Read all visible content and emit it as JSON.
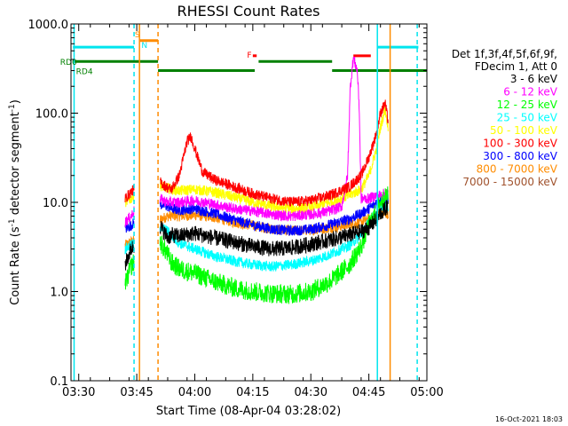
{
  "chart_data": {
    "type": "line",
    "title": "RHESSI Count Rates",
    "xlabel": "Start Time (08-Apr-04 03:28:02)",
    "ylabel": "Count Rate (s⁻¹ detector segment⁻¹)",
    "ylabel_main": "Count Rate (s",
    "ylabel_mid": " detector segment",
    "ylabel_end": ")",
    "ylabel_sup": "-1",
    "yscale": "log",
    "ylim": [
      0.1,
      1000
    ],
    "xlim_min": [
      208,
      300
    ],
    "x_ticks": [
      {
        "t": 210,
        "label": "03:30"
      },
      {
        "t": 225,
        "label": "03:45"
      },
      {
        "t": 240,
        "label": "04:00"
      },
      {
        "t": 255,
        "label": "04:15"
      },
      {
        "t": 270,
        "label": "04:30"
      },
      {
        "t": 285,
        "label": "04:45"
      },
      {
        "t": 300,
        "label": "05:00"
      }
    ],
    "y_ticks": [
      {
        "v": 0.1,
        "label": "0.1"
      },
      {
        "v": 1,
        "label": "1.0"
      },
      {
        "v": 10,
        "label": "10.0"
      },
      {
        "v": 100,
        "label": "100.0"
      },
      {
        "v": 1000,
        "label": "1000.0"
      }
    ],
    "legend_header": [
      "Det 1f,3f,4f,5f,6f,9f,",
      "FDecim 1, Att 0"
    ],
    "legend_placement": "right",
    "series": [
      {
        "name": "3 - 6 keV",
        "color": "#000000",
        "x": [
          222,
          223.5,
          225,
          226,
          230,
          231,
          233,
          234,
          236,
          240,
          245,
          250,
          255,
          260,
          265,
          270,
          275,
          280,
          283,
          285,
          287,
          288,
          290
        ],
        "y": [
          2,
          3,
          3.5,
          4,
          6,
          5.5,
          4,
          4.3,
          4.2,
          4.5,
          4,
          3.6,
          3.2,
          3,
          3.1,
          3.4,
          3.8,
          4.3,
          4.7,
          5.2,
          6.5,
          7.5,
          9
        ]
      },
      {
        "name": "6 - 12 keV",
        "color": "#ff00ff",
        "x": [
          222,
          223.5,
          225,
          226,
          230,
          231,
          233,
          234,
          236,
          240,
          245,
          250,
          255,
          260,
          265,
          270,
          275,
          278,
          279.5,
          280.2,
          281,
          282,
          282.5,
          283,
          285,
          287,
          288,
          290
        ],
        "y": [
          6,
          7,
          9,
          10,
          12,
          11,
          10,
          10,
          10,
          10.5,
          9.5,
          8.5,
          8,
          7.3,
          7,
          7.3,
          8,
          9,
          20,
          200,
          420,
          300,
          120,
          11,
          11,
          12,
          12,
          13
        ]
      },
      {
        "name": "12 - 25 keV",
        "color": "#00ff00",
        "x": [
          222,
          223.5,
          225,
          226,
          230,
          231,
          233,
          234,
          236,
          240,
          245,
          250,
          255,
          260,
          265,
          270,
          275,
          280,
          283,
          285,
          287,
          288,
          290
        ],
        "y": [
          1.2,
          1.9,
          2.4,
          2.6,
          4,
          3.6,
          2.6,
          2.1,
          1.8,
          1.6,
          1.3,
          1.1,
          1.0,
          0.95,
          0.93,
          1.0,
          1.3,
          2,
          3.2,
          5.5,
          8,
          10,
          12
        ]
      },
      {
        "name": "25 - 50 keV",
        "color": "#00ffff",
        "x": [
          222,
          223.5,
          225,
          226,
          230,
          231,
          233,
          234,
          236,
          240,
          245,
          250,
          255,
          260,
          265,
          270,
          275,
          280,
          283,
          285,
          287,
          288,
          290
        ],
        "y": [
          3,
          3.3,
          3.8,
          4.3,
          5,
          5.2,
          4.8,
          4.2,
          3.5,
          3,
          2.5,
          2.2,
          2,
          1.9,
          2,
          2.2,
          2.6,
          3.3,
          4.3,
          6,
          8,
          9,
          9
        ]
      },
      {
        "name": "50 - 100 keV",
        "color": "#ffff00",
        "x": [
          222,
          223.5,
          225,
          226,
          230,
          231,
          233,
          234,
          236,
          240,
          245,
          250,
          255,
          260,
          265,
          270,
          275,
          280,
          283,
          285,
          287,
          288,
          289.2,
          290
        ],
        "y": [
          10,
          11,
          13,
          14,
          16,
          15.5,
          14.5,
          14,
          13.5,
          14,
          13,
          11.5,
          10,
          9,
          8.5,
          8.8,
          10,
          12,
          14,
          20,
          40,
          70,
          110,
          70
        ]
      },
      {
        "name": "100 - 300 keV",
        "color": "#ff0000",
        "x": [
          222,
          223.5,
          225,
          226,
          230,
          231,
          233,
          234,
          236,
          238,
          239,
          240,
          242,
          245,
          250,
          255,
          260,
          265,
          270,
          275,
          280,
          283,
          285,
          287,
          288,
          289.2,
          290
        ],
        "y": [
          11,
          13,
          15,
          17,
          18,
          17,
          14.5,
          14,
          20,
          48,
          55,
          40,
          22,
          18,
          15,
          12.5,
          11,
          10,
          10.5,
          12,
          15,
          20,
          32,
          60,
          100,
          130,
          80
        ]
      },
      {
        "name": "300 - 800 keV",
        "color": "#0000ff",
        "x": [
          222,
          223.5,
          225,
          226,
          230,
          231,
          233,
          234,
          236,
          240,
          245,
          250,
          255,
          260,
          265,
          270,
          275,
          280,
          283,
          285,
          287,
          288,
          290
        ],
        "y": [
          5,
          5.5,
          6.3,
          7,
          9,
          9.5,
          9,
          8.5,
          8.2,
          8.5,
          7.5,
          6.4,
          5.6,
          5,
          4.8,
          5,
          5.6,
          6.5,
          7.5,
          8.5,
          10,
          10.5,
          11
        ]
      },
      {
        "name": "800 - 7000 keV",
        "color": "#ff8c00",
        "x": [
          222,
          223.5,
          225,
          226,
          230,
          231,
          233,
          234,
          236,
          240,
          245,
          250,
          255,
          260,
          265,
          270,
          275,
          280,
          283,
          285,
          287,
          288,
          290
        ],
        "y": [
          3.3,
          3.6,
          3.8,
          4,
          6,
          6.4,
          7,
          7.1,
          7,
          7.2,
          6.8,
          6,
          5.5,
          5,
          4.8,
          4.9,
          5.2,
          5.6,
          6,
          6.5,
          7,
          7.3,
          7.5
        ]
      },
      {
        "name": "7000 - 15000 keV",
        "color": "#a0522d",
        "x": [],
        "y": []
      }
    ],
    "vlines": [
      {
        "t": 208.8,
        "color": "#00e5ee",
        "style": "solid"
      },
      {
        "t": 224.3,
        "color": "#00e5ee",
        "style": "dashed"
      },
      {
        "t": 225.7,
        "color": "#ff8c00",
        "style": "solid"
      },
      {
        "t": 230.5,
        "color": "#ff8c00",
        "style": "dashed"
      },
      {
        "t": 287.2,
        "color": "#00e5ee",
        "style": "solid"
      },
      {
        "t": 290.5,
        "color": "#ff8c00",
        "style": "solid"
      },
      {
        "t": 297.5,
        "color": "#00e5ee",
        "style": "dashed"
      }
    ],
    "flag_bars": [
      {
        "label": "",
        "color": "#00e5ee",
        "t0": 208.5,
        "t1": 224.3,
        "v": 550
      },
      {
        "label": "",
        "color": "#00e5ee",
        "t0": 287.2,
        "t1": 297.8,
        "v": 550
      },
      {
        "label": "",
        "color": "#ff8c00",
        "t0": 225.7,
        "t1": 230.5,
        "v": 650
      },
      {
        "label": "",
        "color": "#ff0000",
        "t0": 255.0,
        "t1": 256.0,
        "v": 440
      },
      {
        "label": "",
        "color": "#ff0000",
        "t0": 281.0,
        "t1": 285.5,
        "v": 440
      },
      {
        "label": "",
        "color": "#008000",
        "t0": 208.5,
        "t1": 230.5,
        "v": 380
      },
      {
        "label": "",
        "color": "#008000",
        "t0": 230.5,
        "t1": 255.5,
        "v": 300
      },
      {
        "label": "",
        "color": "#008000",
        "t0": 256.5,
        "t1": 275.5,
        "v": 380
      },
      {
        "label": "",
        "color": "#008000",
        "t0": 275.5,
        "t1": 300,
        "v": 300
      }
    ],
    "flag_labels": [
      {
        "text": "S",
        "color": "#ff8c00",
        "t": 224.5,
        "v": 780
      },
      {
        "text": "N",
        "color": "#00e5ee",
        "t": 226.2,
        "v": 590
      },
      {
        "text": "F",
        "color": "#ff0000",
        "t": 253.5,
        "v": 460
      },
      {
        "text": "RD0",
        "color": "#008000",
        "t": 205.2,
        "v": 380
      },
      {
        "text": "RD4",
        "color": "#008000",
        "t": 209.3,
        "v": 300
      }
    ]
  },
  "footer_timestamp": "16-Oct-2021 18:03"
}
